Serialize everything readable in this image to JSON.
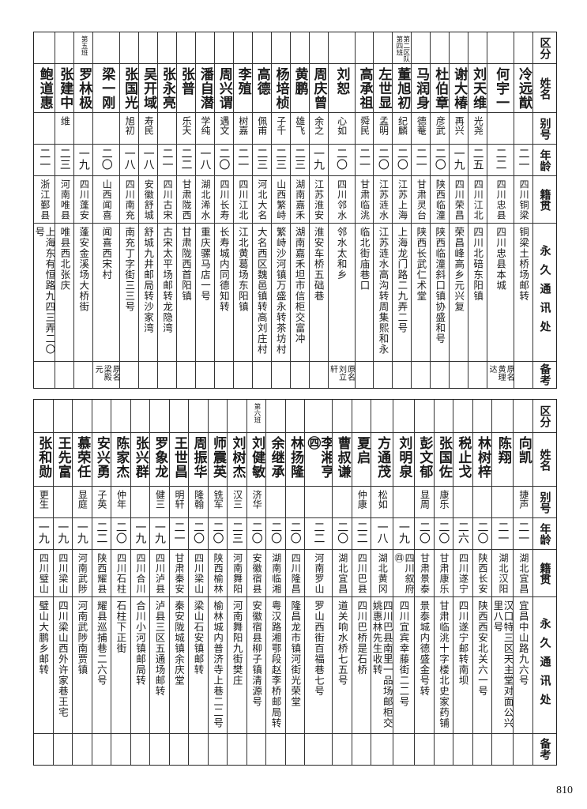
{
  "headers": [
    "区分",
    "姓名",
    "别号",
    "年龄",
    "籍贯",
    "永久通讯处",
    "备考"
  ],
  "top_table": [
    {
      "section": "",
      "name": "冷远猷",
      "alias": "",
      "age": "二一",
      "origin": "四川铜梁",
      "address": "铜梁土桥场邮转",
      "note": ""
    },
    {
      "section": "",
      "name": "何宇一",
      "alias": "",
      "age": "二二",
      "origin": "四川忠县",
      "address": "四川忠县本城",
      "note": "原名黄理达"
    },
    {
      "section": "",
      "name": "刘天维",
      "alias": "光尧",
      "age": "二五",
      "origin": "四川江北",
      "address": "四川北碚东阳镇",
      "note": ""
    },
    {
      "section": "",
      "name": "谢大椿",
      "alias": "再兴",
      "age": "一九",
      "origin": "四川荣昌",
      "address": "荣昌峰高乡元兴复",
      "note": ""
    },
    {
      "section": "",
      "name": "杜伯章",
      "alias": "彦武",
      "age": "二〇",
      "origin": "陕西临潼",
      "address": "陕西临潼斜口镇协盛和号",
      "note": ""
    },
    {
      "section": "",
      "name": "马润身",
      "alias": "德菴",
      "age": "二一",
      "origin": "甘肃灵台",
      "address": "陕西长武仁术堂",
      "note": ""
    },
    {
      "section": "第二区队第四班",
      "name": "董旭初",
      "alias": "纪麟",
      "age": "二〇",
      "origin": "江苏上海",
      "address": "上海龙门路二九弄二号",
      "note": ""
    },
    {
      "section": "",
      "name": "左世显",
      "alias": "孟明",
      "age": "二〇",
      "origin": "江苏涟水",
      "address": "江苏涟水高沟转周集熙和永",
      "note": ""
    },
    {
      "section": "",
      "name": "高承祖",
      "alias": "舜民",
      "age": "二一",
      "origin": "甘肃临洮",
      "address": "临北街庙巷口",
      "note": ""
    },
    {
      "section": "",
      "name": "刘恕",
      "alias": "心如",
      "age": "二〇",
      "origin": "四川邻水",
      "address": "邻水太和乡",
      "note": "原名刘立轩"
    },
    {
      "section": "",
      "name": "周庆曾",
      "alias": "余之",
      "age": "一九",
      "origin": "江苏淮安",
      "address": "淮安车桥五础巷",
      "note": ""
    },
    {
      "section": "",
      "name": "黄鹏",
      "alias": "雄飞",
      "age": "二三",
      "origin": "湖南嘉禾",
      "address": "湖南嘉禾坦市信柜交富冲",
      "note": ""
    },
    {
      "section": "",
      "name": "杨培桢",
      "alias": "子千",
      "age": "二三",
      "origin": "山西繁峙",
      "address": "繁峙沙河镇万盛永转茶坊村",
      "note": ""
    },
    {
      "section": "",
      "name": "高德",
      "alias": "佩甫",
      "age": "二三",
      "origin": "河北大名",
      "address": "大名西区魏邑镇转高刘庄村",
      "note": ""
    },
    {
      "section": "",
      "name": "李殖",
      "alias": "树嘉",
      "age": "二一",
      "origin": "四川江北",
      "address": "江北黄葛场东阳镇",
      "note": ""
    },
    {
      "section": "",
      "name": "周兴谓",
      "alias": "遇文",
      "age": "二〇",
      "origin": "四川长寿",
      "address": "长寿城内同德知转",
      "note": ""
    },
    {
      "section": "",
      "name": "潘自潜",
      "alias": "学纯",
      "age": "一八",
      "origin": "湖北浠水",
      "address": "重庆骡马店一号",
      "note": ""
    },
    {
      "section": "",
      "name": "张普",
      "alias": "乐天",
      "age": "二二",
      "origin": "甘肃陇西",
      "address": "甘肃陇西首阳镇",
      "note": ""
    },
    {
      "section": "",
      "name": "张永亮",
      "alias": "",
      "age": "二一",
      "origin": "四川古宋",
      "address": "古宋太平场邮转龙隐湾",
      "note": ""
    },
    {
      "section": "",
      "name": "吴开域",
      "alias": "寿民",
      "age": "一八",
      "origin": "安徽舒城",
      "address": "舒城九井邮局转沙家湾",
      "note": ""
    },
    {
      "section": "",
      "name": "张国光",
      "alias": "旭初",
      "age": "一八",
      "origin": "四川南充",
      "address": "南充丁字街三三号",
      "note": ""
    },
    {
      "section": "",
      "name": "梁一刚",
      "alias": "",
      "age": "二〇",
      "origin": "山西闻喜",
      "address": "闻喜西宋村",
      "note": "原名梁殿元"
    },
    {
      "section": "第五班",
      "name": "罗林极",
      "alias": "",
      "age": "一九",
      "origin": "四川蓬安",
      "address": "蓬安金溪场大桥街",
      "note": ""
    },
    {
      "section": "",
      "name": "张建中",
      "alias": "维",
      "age": "二三",
      "origin": "河南唯县",
      "address": "唯县西北张庆",
      "note": ""
    },
    {
      "section": "",
      "name": "鲍道惠",
      "alias": "",
      "age": "二一",
      "origin": "浙江鄞县",
      "address": "上海东有恒路九四三弄二〇号",
      "note": ""
    }
  ],
  "bottom_table": [
    {
      "section": "",
      "name": "向凯",
      "alias": "捷声",
      "age": "二一",
      "origin": "湖北宜昌",
      "address": "宜昌中山路九六号",
      "note": ""
    },
    {
      "section": "",
      "name": "陈翔",
      "alias": "",
      "age": "二一",
      "origin": "湖北汉阳",
      "address": "汉口特三区天主堂对面公兴里八号",
      "note": ""
    },
    {
      "section": "",
      "name": "林树梓",
      "alias": "",
      "age": "二〇",
      "origin": "陕西长安",
      "address": "陕西西安北关六一号",
      "note": ""
    },
    {
      "section": "",
      "name": "税止戈",
      "alias": "",
      "age": "二六",
      "origin": "四川遂宁",
      "address": "四川遂宁邮转南坝",
      "note": ""
    },
    {
      "section": "",
      "name": "张国佐",
      "alias": "康乐",
      "age": "二〇",
      "origin": "甘肃康乐",
      "address": "甘肃临洮十字楼北史家药铺",
      "note": ""
    },
    {
      "section": "",
      "name": "彭文郁",
      "alias": "显周",
      "age": "二〇",
      "origin": "甘肃景泰",
      "address": "景泰城内德盛金号转",
      "note": ""
    },
    {
      "section": "",
      "name": "刘明泉",
      "alias": "",
      "age": "一九",
      "origin": "四川叙府㊃",
      "address": "四川宜宾幸藤街二二号",
      "note": ""
    },
    {
      "section": "",
      "name": "方通茂",
      "alias": "松如",
      "age": "一八",
      "origin": "湖北黄冈",
      "address": "四川巴县南里一品场邮柜交姚惠林先生收转",
      "note": ""
    },
    {
      "section": "",
      "name": "夏启",
      "alias": "仲康",
      "age": "二二",
      "origin": "四川巴县",
      "address": "四川巴桥是石桥",
      "note": ""
    },
    {
      "section": "",
      "name": "曹叔谦",
      "alias": "",
      "age": "二〇",
      "origin": "湖北宜昌",
      "address": "道关响水桥七五号",
      "note": ""
    },
    {
      "section": "",
      "name": "李湘亨㊃",
      "alias": "",
      "age": "二二",
      "origin": "河南罗山",
      "address": "罗山西街百福巷七号",
      "note": ""
    },
    {
      "section": "",
      "name": "林扬隆",
      "alias": "",
      "age": "二〇",
      "origin": "四川隆昌",
      "address": "隆昌龙市镇河街光荣堂",
      "note": ""
    },
    {
      "section": "",
      "name": "余继承",
      "alias": "",
      "age": "二〇",
      "origin": "湖南临湘",
      "address": "粤汉路湘鄂段赵李桥邮局转",
      "note": ""
    },
    {
      "section": "第六班",
      "name": "刘健敏",
      "alias": "济华",
      "age": "二〇",
      "origin": "安徽宿县",
      "address": "安徽宿县柳子镇清源号",
      "note": ""
    },
    {
      "section": "",
      "name": "刘树杰",
      "alias": "汉三",
      "age": "二三",
      "origin": "河南舞阳",
      "address": "河南舞阳九街樊庄",
      "note": ""
    },
    {
      "section": "",
      "name": "师震英",
      "alias": "铣军",
      "age": "二〇",
      "origin": "陕西榆林",
      "address": "榆林城内普济寺上巷二二号",
      "note": ""
    },
    {
      "section": "",
      "name": "周振华",
      "alias": "隆翰",
      "age": "二〇",
      "origin": "四川梁山",
      "address": "梁山石安镇邮转",
      "note": ""
    },
    {
      "section": "",
      "name": "王世昌",
      "alias": "明轩",
      "age": "二一",
      "origin": "甘肃秦安",
      "address": "秦安陇城镇余庆堂",
      "note": ""
    },
    {
      "section": "",
      "name": "罗象龙",
      "alias": "健三",
      "age": "一九",
      "origin": "四川泸县",
      "address": "泸县三区五通场邮转",
      "note": ""
    },
    {
      "section": "",
      "name": "张兴群",
      "alias": "",
      "age": "一九",
      "origin": "四川合川",
      "address": "合川小河镇邮局转",
      "note": ""
    },
    {
      "section": "",
      "name": "陈家杰",
      "alias": "仲年",
      "age": "二〇",
      "origin": "四川石柱",
      "address": "石柱下正街",
      "note": ""
    },
    {
      "section": "",
      "name": "安兴勇",
      "alias": "子英",
      "age": "二二",
      "origin": "陕西耀县",
      "address": "耀县巡捕巷二六号",
      "note": ""
    },
    {
      "section": "",
      "name": "慕荣任",
      "alias": "显庭",
      "age": "一九",
      "origin": "河南武陟",
      "address": "河南武陟南贾镇",
      "note": ""
    },
    {
      "section": "",
      "name": "王先富",
      "alias": "",
      "age": "一九",
      "origin": "四川梁山",
      "address": "四川梁山西外许家巷王宅",
      "note": ""
    },
    {
      "section": "",
      "name": "张和勋",
      "alias": "更生",
      "age": "一九",
      "origin": "四川璧山",
      "address": "璧山大鹏乡邮转",
      "note": ""
    }
  ],
  "page_number": "810"
}
